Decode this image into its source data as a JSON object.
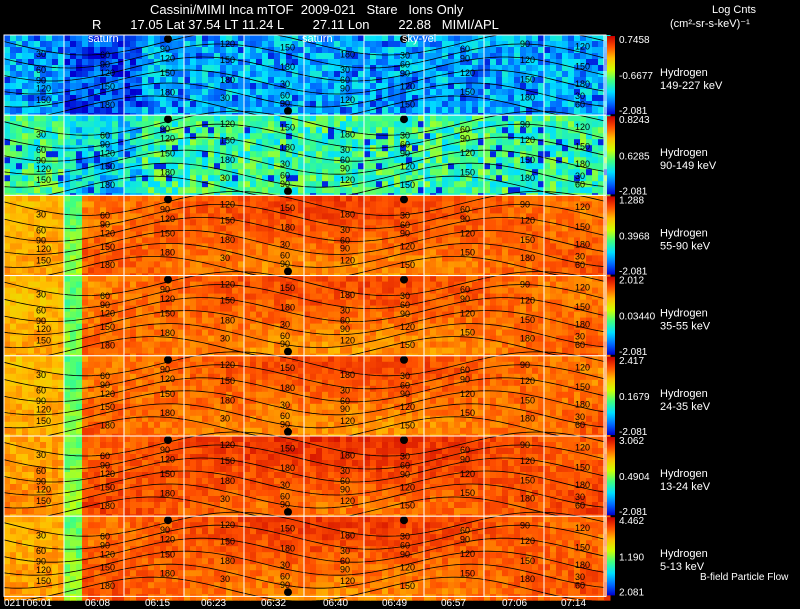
{
  "header": {
    "line1": "Cassini/MIMI Inca mTOF  2009-021   Stare   Ions Only",
    "line2": "R        17.05 Lat 37.54 LT 11.24 L        27.11 Lon        22.88   MIMI/APL"
  },
  "colorbar_title": "Log Cnts",
  "colorbar_units": "(cm²-sr-s-keV)⁻¹",
  "overlay_labels": [
    "saturn",
    "saturn",
    "sky-vel"
  ],
  "footer_note": "B-field Particle Flow",
  "colors": {
    "background": "#000000",
    "colormap": [
      "#0000d0",
      "#0070ff",
      "#00e0ff",
      "#40ff80",
      "#d0ff00",
      "#ffc000",
      "#ff5000",
      "#c80000"
    ]
  },
  "chart_data": {
    "type": "heatmap",
    "x_tick_labels": [
      "021T06:01",
      "06:08",
      "06:15",
      "06:23",
      "06:32",
      "06:40",
      "06:49",
      "06:57",
      "07:06",
      "07:14"
    ],
    "contour_labels": [
      "30",
      "60",
      "90",
      "120",
      "150",
      "180"
    ],
    "panels": [
      {
        "species": "Hydrogen",
        "energy": "149-227 keV",
        "cbar_max": "0.7458",
        "cbar_mid": "-0.6677",
        "cbar_min": "-2.081"
      },
      {
        "species": "Hydrogen",
        "energy": "90-149 keV",
        "cbar_max": "0.8243",
        "cbar_mid": "0.6285",
        "cbar_min": "-2.081"
      },
      {
        "species": "Hydrogen",
        "energy": "55-90 keV",
        "cbar_max": "1.288",
        "cbar_mid": "0.3968",
        "cbar_min": "-2.081"
      },
      {
        "species": "Hydrogen",
        "energy": "35-55 keV",
        "cbar_max": "2.012",
        "cbar_mid": "0.03440",
        "cbar_min": "-2.081"
      },
      {
        "species": "Hydrogen",
        "energy": "24-35 keV",
        "cbar_max": "2.417",
        "cbar_mid": "0.1679",
        "cbar_min": "-2.081"
      },
      {
        "species": "Hydrogen",
        "energy": "13-24 keV",
        "cbar_max": "3.062",
        "cbar_mid": "0.4904",
        "cbar_min": "-2.081"
      },
      {
        "species": "Hydrogen",
        "energy": "5-13 keV",
        "cbar_max": "4.462",
        "cbar_mid": "1.190",
        "cbar_min": "2.081"
      }
    ]
  }
}
